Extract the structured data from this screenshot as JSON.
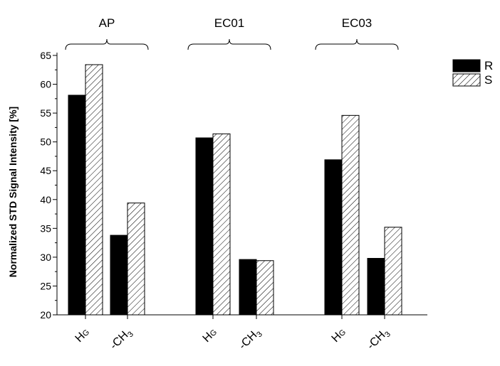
{
  "chart_data": {
    "type": "bar",
    "title": "",
    "xlabel": "",
    "ylabel": "Normalized STD Signal Intensity [%]",
    "ylim": [
      20,
      65
    ],
    "yticks": [
      20,
      25,
      30,
      35,
      40,
      45,
      50,
      55,
      60,
      65
    ],
    "grid": false,
    "legend_position": "top-right",
    "groups": [
      "AP",
      "EC01",
      "EC03"
    ],
    "category_labels": [
      {
        "main": "H",
        "sub": "G",
        "sub_style": "smallcaps"
      },
      {
        "main": "-CH",
        "sub": "3",
        "sub_style": "subscript"
      }
    ],
    "categories": [
      "AP HG",
      "AP -CH3",
      "EC01 HG",
      "EC01 -CH3",
      "EC03 HG",
      "EC03 -CH3"
    ],
    "series": [
      {
        "name": "R",
        "fill": "solid",
        "color": "#000000",
        "values": [
          58.1,
          33.8,
          50.7,
          29.6,
          46.9,
          29.8
        ]
      },
      {
        "name": "S",
        "fill": "hatched",
        "color": "#000000",
        "values": [
          63.4,
          39.4,
          51.4,
          29.4,
          54.6,
          35.2
        ]
      }
    ]
  }
}
